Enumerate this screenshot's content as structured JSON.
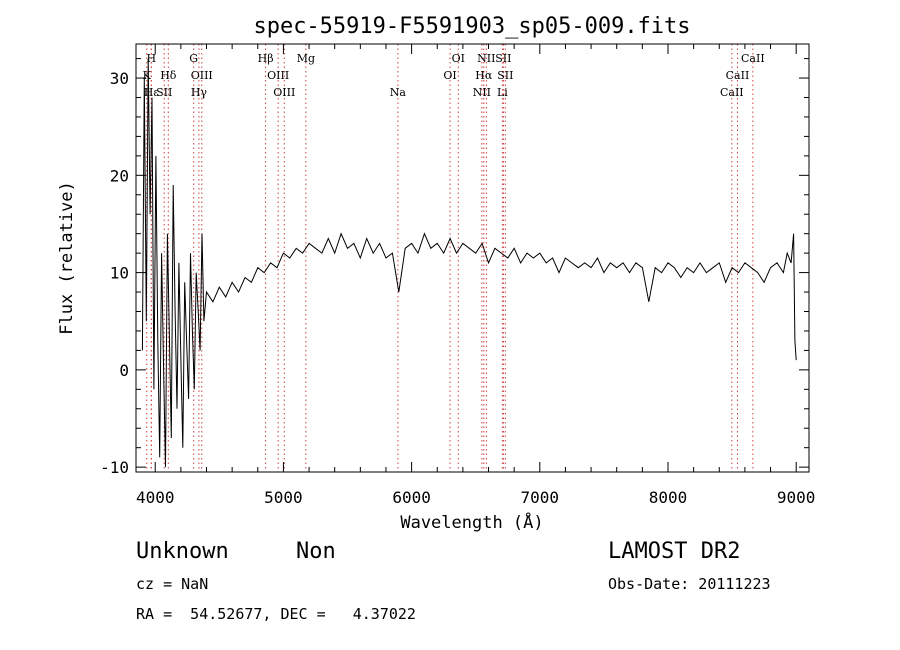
{
  "chart_data": {
    "type": "line",
    "title": "spec-55919-F5591903_sp05-009.fits",
    "xlabel": "Wavelength (Å)",
    "ylabel": "Flux (relative)",
    "xlim": [
      3850,
      9100
    ],
    "ylim": [
      -10.5,
      33.5
    ],
    "x_ticks": [
      4000,
      5000,
      6000,
      7000,
      8000,
      9000
    ],
    "y_ticks": [
      -10,
      0,
      10,
      20,
      30
    ],
    "grid": false,
    "line_color": "#000000",
    "marker_color": "#d04040",
    "lines": [
      {
        "wl": 3934,
        "label": "K",
        "row": 1
      },
      {
        "wl": 3969,
        "label": "H",
        "row": 0
      },
      {
        "wl": 3970,
        "label": "Hε",
        "row": 2
      },
      {
        "wl": 4102,
        "label": "Hδ",
        "row": 1
      },
      {
        "wl": 4070,
        "label": "SII",
        "row": 2
      },
      {
        "wl": 4300,
        "label": "G",
        "row": 0
      },
      {
        "wl": 4363,
        "label": "OIII",
        "row": 1
      },
      {
        "wl": 4341,
        "label": "Hγ",
        "row": 2
      },
      {
        "wl": 4861,
        "label": "Hβ",
        "row": 0
      },
      {
        "wl": 4959,
        "label": "OIII",
        "row": 1
      },
      {
        "wl": 5007,
        "label": "OIII",
        "row": 2
      },
      {
        "wl": 5175,
        "label": "Mg",
        "row": 0
      },
      {
        "wl": 5893,
        "label": "Na",
        "row": 2
      },
      {
        "wl": 6300,
        "label": "OI",
        "row": 1
      },
      {
        "wl": 6364,
        "label": "OI",
        "row": 0
      },
      {
        "wl": 6548,
        "label": "NII",
        "row": 2
      },
      {
        "wl": 6563,
        "label": "Hα",
        "row": 1
      },
      {
        "wl": 6583,
        "label": "NII",
        "row": 0
      },
      {
        "wl": 6716,
        "label": "SII",
        "row": 0
      },
      {
        "wl": 6731,
        "label": "SII",
        "row": 1
      },
      {
        "wl": 6708,
        "label": "Li",
        "row": 2
      },
      {
        "wl": 8498,
        "label": "CaII",
        "row": 2
      },
      {
        "wl": 8542,
        "label": "CaII",
        "row": 1
      },
      {
        "wl": 8662,
        "label": "CaII",
        "row": 0
      }
    ],
    "series": [
      {
        "x": [
          3900,
          3915,
          3930,
          3945,
          3960,
          3975,
          3990,
          4005,
          4020,
          4035,
          4050,
          4065,
          4080,
          4095,
          4110,
          4125,
          4140,
          4155,
          4170,
          4185,
          4200,
          4215,
          4230,
          4245,
          4260,
          4275,
          4290,
          4305,
          4320,
          4335,
          4350,
          4365,
          4380,
          4400,
          4450,
          4500,
          4550,
          4600,
          4650,
          4700,
          4750,
          4800,
          4850,
          4900,
          4950,
          5000,
          5050,
          5100,
          5150,
          5200,
          5250,
          5300,
          5350,
          5400,
          5450,
          5500,
          5550,
          5600,
          5650,
          5700,
          5750,
          5800,
          5850,
          5900,
          5950,
          6000,
          6050,
          6100,
          6150,
          6200,
          6250,
          6300,
          6350,
          6400,
          6450,
          6500,
          6550,
          6600,
          6650,
          6700,
          6750,
          6800,
          6850,
          6900,
          6950,
          7000,
          7050,
          7100,
          7150,
          7200,
          7250,
          7300,
          7350,
          7400,
          7450,
          7500,
          7550,
          7600,
          7650,
          7700,
          7750,
          7800,
          7850,
          7900,
          7950,
          8000,
          8050,
          8100,
          8150,
          8200,
          8250,
          8300,
          8350,
          8400,
          8450,
          8500,
          8550,
          8600,
          8650,
          8700,
          8750,
          8800,
          8850,
          8900,
          8930,
          8960,
          8980,
          8990,
          9000
        ],
        "y": [
          2,
          30,
          5,
          32,
          16,
          28,
          -2,
          22,
          3,
          -9,
          12,
          0,
          -10,
          14,
          4,
          -7,
          19,
          6,
          -4,
          11,
          1,
          -8,
          9,
          3,
          -3,
          12,
          4,
          -2,
          10,
          6,
          2,
          14,
          5,
          8,
          7,
          8.5,
          7.5,
          9,
          8,
          9.5,
          9,
          10.5,
          10,
          11,
          10.5,
          12,
          11.5,
          12.5,
          12,
          13,
          12.5,
          12,
          13.5,
          12,
          14,
          12.5,
          13,
          11.5,
          13.5,
          12,
          13,
          11.5,
          12,
          8,
          12.5,
          13,
          12,
          14,
          12.5,
          13,
          12,
          13.5,
          12,
          13,
          12.5,
          12,
          13,
          11,
          12.5,
          12,
          11.5,
          12.5,
          11,
          12,
          11.5,
          12,
          11,
          11.5,
          10,
          11.5,
          11,
          10.5,
          11,
          10.5,
          11.5,
          10,
          11,
          10.5,
          11,
          10,
          11,
          10.5,
          7,
          10.5,
          10,
          11,
          10.5,
          9.5,
          10.5,
          10,
          11,
          10,
          10.5,
          11,
          9,
          10.5,
          10,
          11,
          10.5,
          10,
          9,
          10.5,
          11,
          10,
          12,
          11,
          14,
          3,
          1
        ]
      }
    ]
  },
  "info": {
    "class": "Unknown",
    "subclass": "Non",
    "survey": "LAMOST DR2",
    "cz": "cz = NaN",
    "obsdate": "Obs-Date: 20111223",
    "radec": "RA =  54.52677, DEC =   4.37022"
  }
}
